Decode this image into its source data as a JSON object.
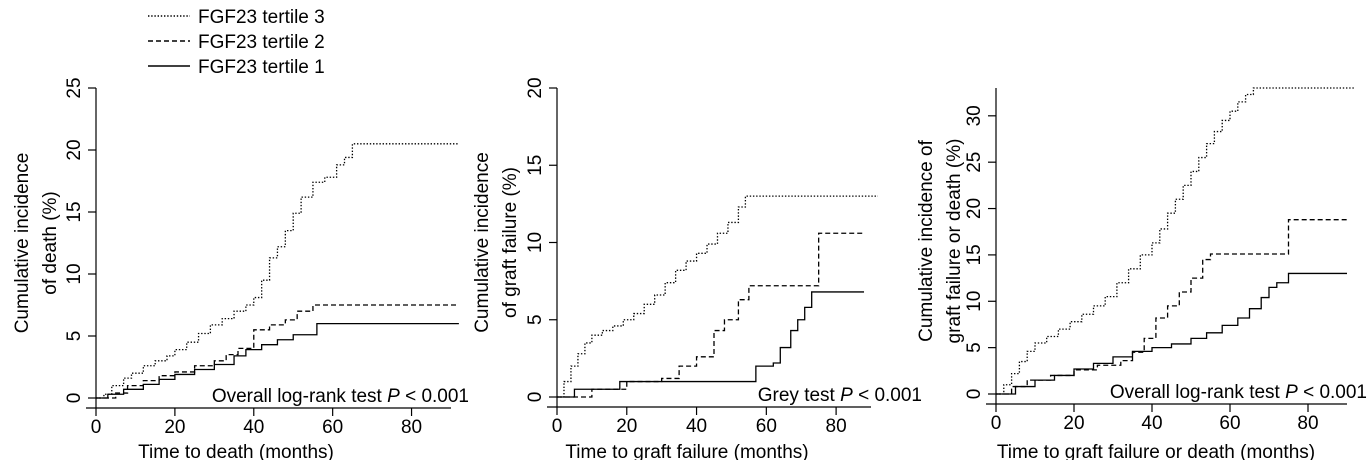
{
  "legend": [
    {
      "label": "FGF23 tertile 3",
      "dash": "dotted"
    },
    {
      "label": "FGF23 tertile 2",
      "dash": "dashed"
    },
    {
      "label": "FGF23 tertile 1",
      "dash": "solid"
    }
  ],
  "chart_data": [
    {
      "type": "line",
      "title": "",
      "xlabel": "Time to death (months)",
      "ylabel": [
        "Cumulative incidence",
        "of death (%)"
      ],
      "xlim": [
        0,
        90
      ],
      "ylim": [
        0,
        25
      ],
      "xticks": [
        0,
        20,
        40,
        60,
        80
      ],
      "yticks": [
        0,
        5,
        10,
        15,
        20,
        25
      ],
      "annotation": {
        "prefix": "Overall log-rank test ",
        "p": "P",
        "suffix": " < 0.001"
      },
      "series": [
        {
          "name": "FGF23 tertile 3",
          "dash": "dotted",
          "x": [
            0,
            2,
            4,
            7,
            9,
            12,
            15,
            18,
            20,
            23,
            26,
            29,
            32,
            35,
            38,
            40,
            42,
            44,
            46,
            48,
            50,
            52,
            55,
            58,
            61,
            63,
            65,
            92
          ],
          "y": [
            0,
            0.3,
            1,
            1.6,
            2,
            2.6,
            3,
            3.4,
            3.9,
            4.5,
            5.2,
            5.9,
            6.4,
            7,
            7.5,
            8.1,
            9.5,
            11.3,
            12.2,
            13.5,
            14.9,
            16.2,
            17.4,
            17.8,
            18.8,
            19.4,
            20.5,
            20.5
          ]
        },
        {
          "name": "FGF23 tertile 2",
          "dash": "dashed",
          "x": [
            0,
            5,
            8,
            12,
            16,
            20,
            25,
            30,
            33,
            36,
            40,
            44,
            48,
            51,
            55,
            92
          ],
          "y": [
            0,
            0.4,
            1,
            1.4,
            1.8,
            2.1,
            2.6,
            3,
            3.5,
            4,
            5.5,
            5.9,
            6.3,
            7,
            7.5,
            7.5
          ]
        },
        {
          "name": "FGF23 tertile 1",
          "dash": "solid",
          "x": [
            0,
            3,
            7,
            12,
            16,
            20,
            25,
            30,
            35,
            38,
            42,
            46,
            50,
            56,
            92
          ],
          "y": [
            0,
            0.3,
            0.7,
            1.1,
            1.5,
            1.9,
            2.3,
            2.7,
            3.4,
            3.9,
            4.3,
            4.7,
            5.1,
            6,
            6
          ]
        }
      ]
    },
    {
      "type": "line",
      "title": "",
      "xlabel": "Time to graft failure (months)",
      "ylabel": [
        "Cumulative incidence",
        "of graft failure (%)"
      ],
      "xlim": [
        0,
        90
      ],
      "ylim": [
        0,
        20
      ],
      "xticks": [
        0,
        20,
        40,
        60,
        80
      ],
      "yticks": [
        0,
        5,
        10,
        15,
        20
      ],
      "annotation": {
        "prefix": "Grey test ",
        "p": "P",
        "suffix": " < 0.001"
      },
      "series": [
        {
          "name": "FGF23 tertile 3",
          "dash": "dotted",
          "x": [
            0,
            2,
            4,
            6,
            8,
            10,
            13,
            16,
            19,
            22,
            25,
            28,
            31,
            34,
            37,
            40,
            43,
            46,
            49,
            52,
            54,
            92
          ],
          "y": [
            0,
            1,
            2,
            2.8,
            3.5,
            4,
            4.3,
            4.6,
            5,
            5.4,
            6,
            6.6,
            7.4,
            8.2,
            8.8,
            9.3,
            9.9,
            10.6,
            11.3,
            12.3,
            13,
            13
          ]
        },
        {
          "name": "FGF23 tertile 2",
          "dash": "dashed",
          "x": [
            0,
            10,
            20,
            30,
            35,
            40,
            45,
            48,
            52,
            55,
            73,
            75,
            88
          ],
          "y": [
            0,
            0.5,
            1,
            1.2,
            2,
            2.6,
            4.3,
            5,
            6.3,
            7.2,
            7.2,
            10.6,
            10.6
          ]
        },
        {
          "name": "FGF23 tertile 1",
          "dash": "solid",
          "x": [
            0,
            5,
            18,
            55,
            57,
            62,
            64,
            67,
            69,
            71,
            73,
            88
          ],
          "y": [
            0,
            0.5,
            1,
            1,
            2,
            2.2,
            3.2,
            4.3,
            5,
            5.8,
            6.8,
            6.8
          ]
        }
      ]
    },
    {
      "type": "line",
      "title": "",
      "xlabel": "Time to graft failure or death (months)",
      "ylabel": [
        "Cumulative incidence of",
        "graft failure or  death (%)"
      ],
      "xlim": [
        0,
        90
      ],
      "ylim": [
        0,
        33
      ],
      "xticks": [
        0,
        20,
        40,
        60,
        80
      ],
      "yticks": [
        0,
        5,
        10,
        15,
        20,
        25,
        30
      ],
      "annotation": {
        "prefix": "Overall log-rank test ",
        "p": "P",
        "suffix": " < 0.001"
      },
      "series": [
        {
          "name": "FGF23 tertile 3",
          "dash": "dotted",
          "x": [
            0,
            2,
            4,
            6,
            8,
            10,
            13,
            16,
            19,
            22,
            25,
            28,
            31,
            34,
            37,
            40,
            42,
            44,
            46,
            48,
            50,
            52,
            54,
            56,
            58,
            60,
            62,
            64,
            66,
            92
          ],
          "y": [
            0,
            1,
            2.2,
            3.5,
            4.6,
            5.5,
            6.2,
            7,
            7.8,
            8.6,
            9.5,
            10.5,
            12,
            13.5,
            15,
            16.3,
            17.8,
            19.5,
            21,
            22.5,
            24,
            25.5,
            27,
            28.3,
            29.5,
            30.5,
            31.5,
            32.3,
            33,
            33
          ]
        },
        {
          "name": "FGF23 tertile 2",
          "dash": "dashed",
          "x": [
            0,
            4,
            8,
            14,
            20,
            26,
            32,
            35,
            38,
            41,
            44,
            47,
            50,
            53,
            55,
            73,
            75,
            90
          ],
          "y": [
            0,
            0.8,
            1.5,
            2,
            2.6,
            3.1,
            3.6,
            4.5,
            6,
            8.2,
            9.5,
            11,
            12.5,
            14.5,
            15.1,
            15.1,
            18.8,
            18.8
          ]
        },
        {
          "name": "FGF23 tertile 1",
          "dash": "solid",
          "x": [
            0,
            5,
            10,
            15,
            20,
            25,
            30,
            35,
            40,
            45,
            50,
            54,
            58,
            62,
            65,
            68,
            70,
            72,
            75,
            90
          ],
          "y": [
            0,
            0.8,
            1.5,
            2,
            2.7,
            3.3,
            4,
            4.6,
            5,
            5.4,
            6,
            6.6,
            7.4,
            8.2,
            9.2,
            10.4,
            11.5,
            12,
            13,
            13
          ]
        }
      ]
    }
  ]
}
